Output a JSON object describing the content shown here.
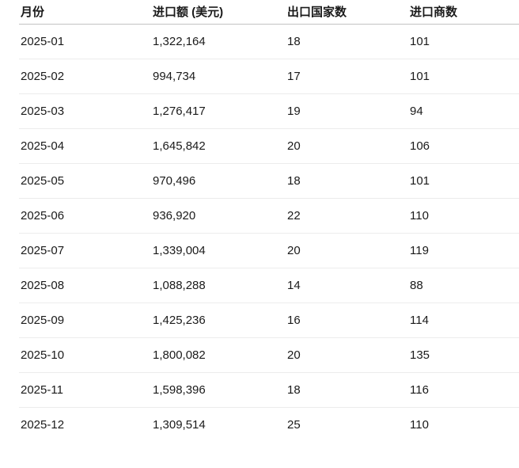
{
  "table": {
    "columns": [
      "月份",
      "进口额 (美元)",
      "出口国家数",
      "进口商数"
    ],
    "rows": [
      [
        "2025-01",
        "1,322,164",
        "18",
        "101"
      ],
      [
        "2025-02",
        "994,734",
        "17",
        "101"
      ],
      [
        "2025-03",
        "1,276,417",
        "19",
        "94"
      ],
      [
        "2025-04",
        "1,645,842",
        "20",
        "106"
      ],
      [
        "2025-05",
        "970,496",
        "18",
        "101"
      ],
      [
        "2025-06",
        "936,920",
        "22",
        "110"
      ],
      [
        "2025-07",
        "1,339,004",
        "20",
        "119"
      ],
      [
        "2025-08",
        "1,088,288",
        "14",
        "88"
      ],
      [
        "2025-09",
        "1,425,236",
        "16",
        "114"
      ],
      [
        "2025-10",
        "1,800,082",
        "20",
        "135"
      ],
      [
        "2025-11",
        "1,598,396",
        "18",
        "116"
      ],
      [
        "2025-12",
        "1,309,514",
        "25",
        "110"
      ]
    ]
  },
  "colors": {
    "text": "#1a1a1a",
    "header_divider": "#c2c2c2",
    "row_divider": "#ececec",
    "background": "#ffffff"
  }
}
